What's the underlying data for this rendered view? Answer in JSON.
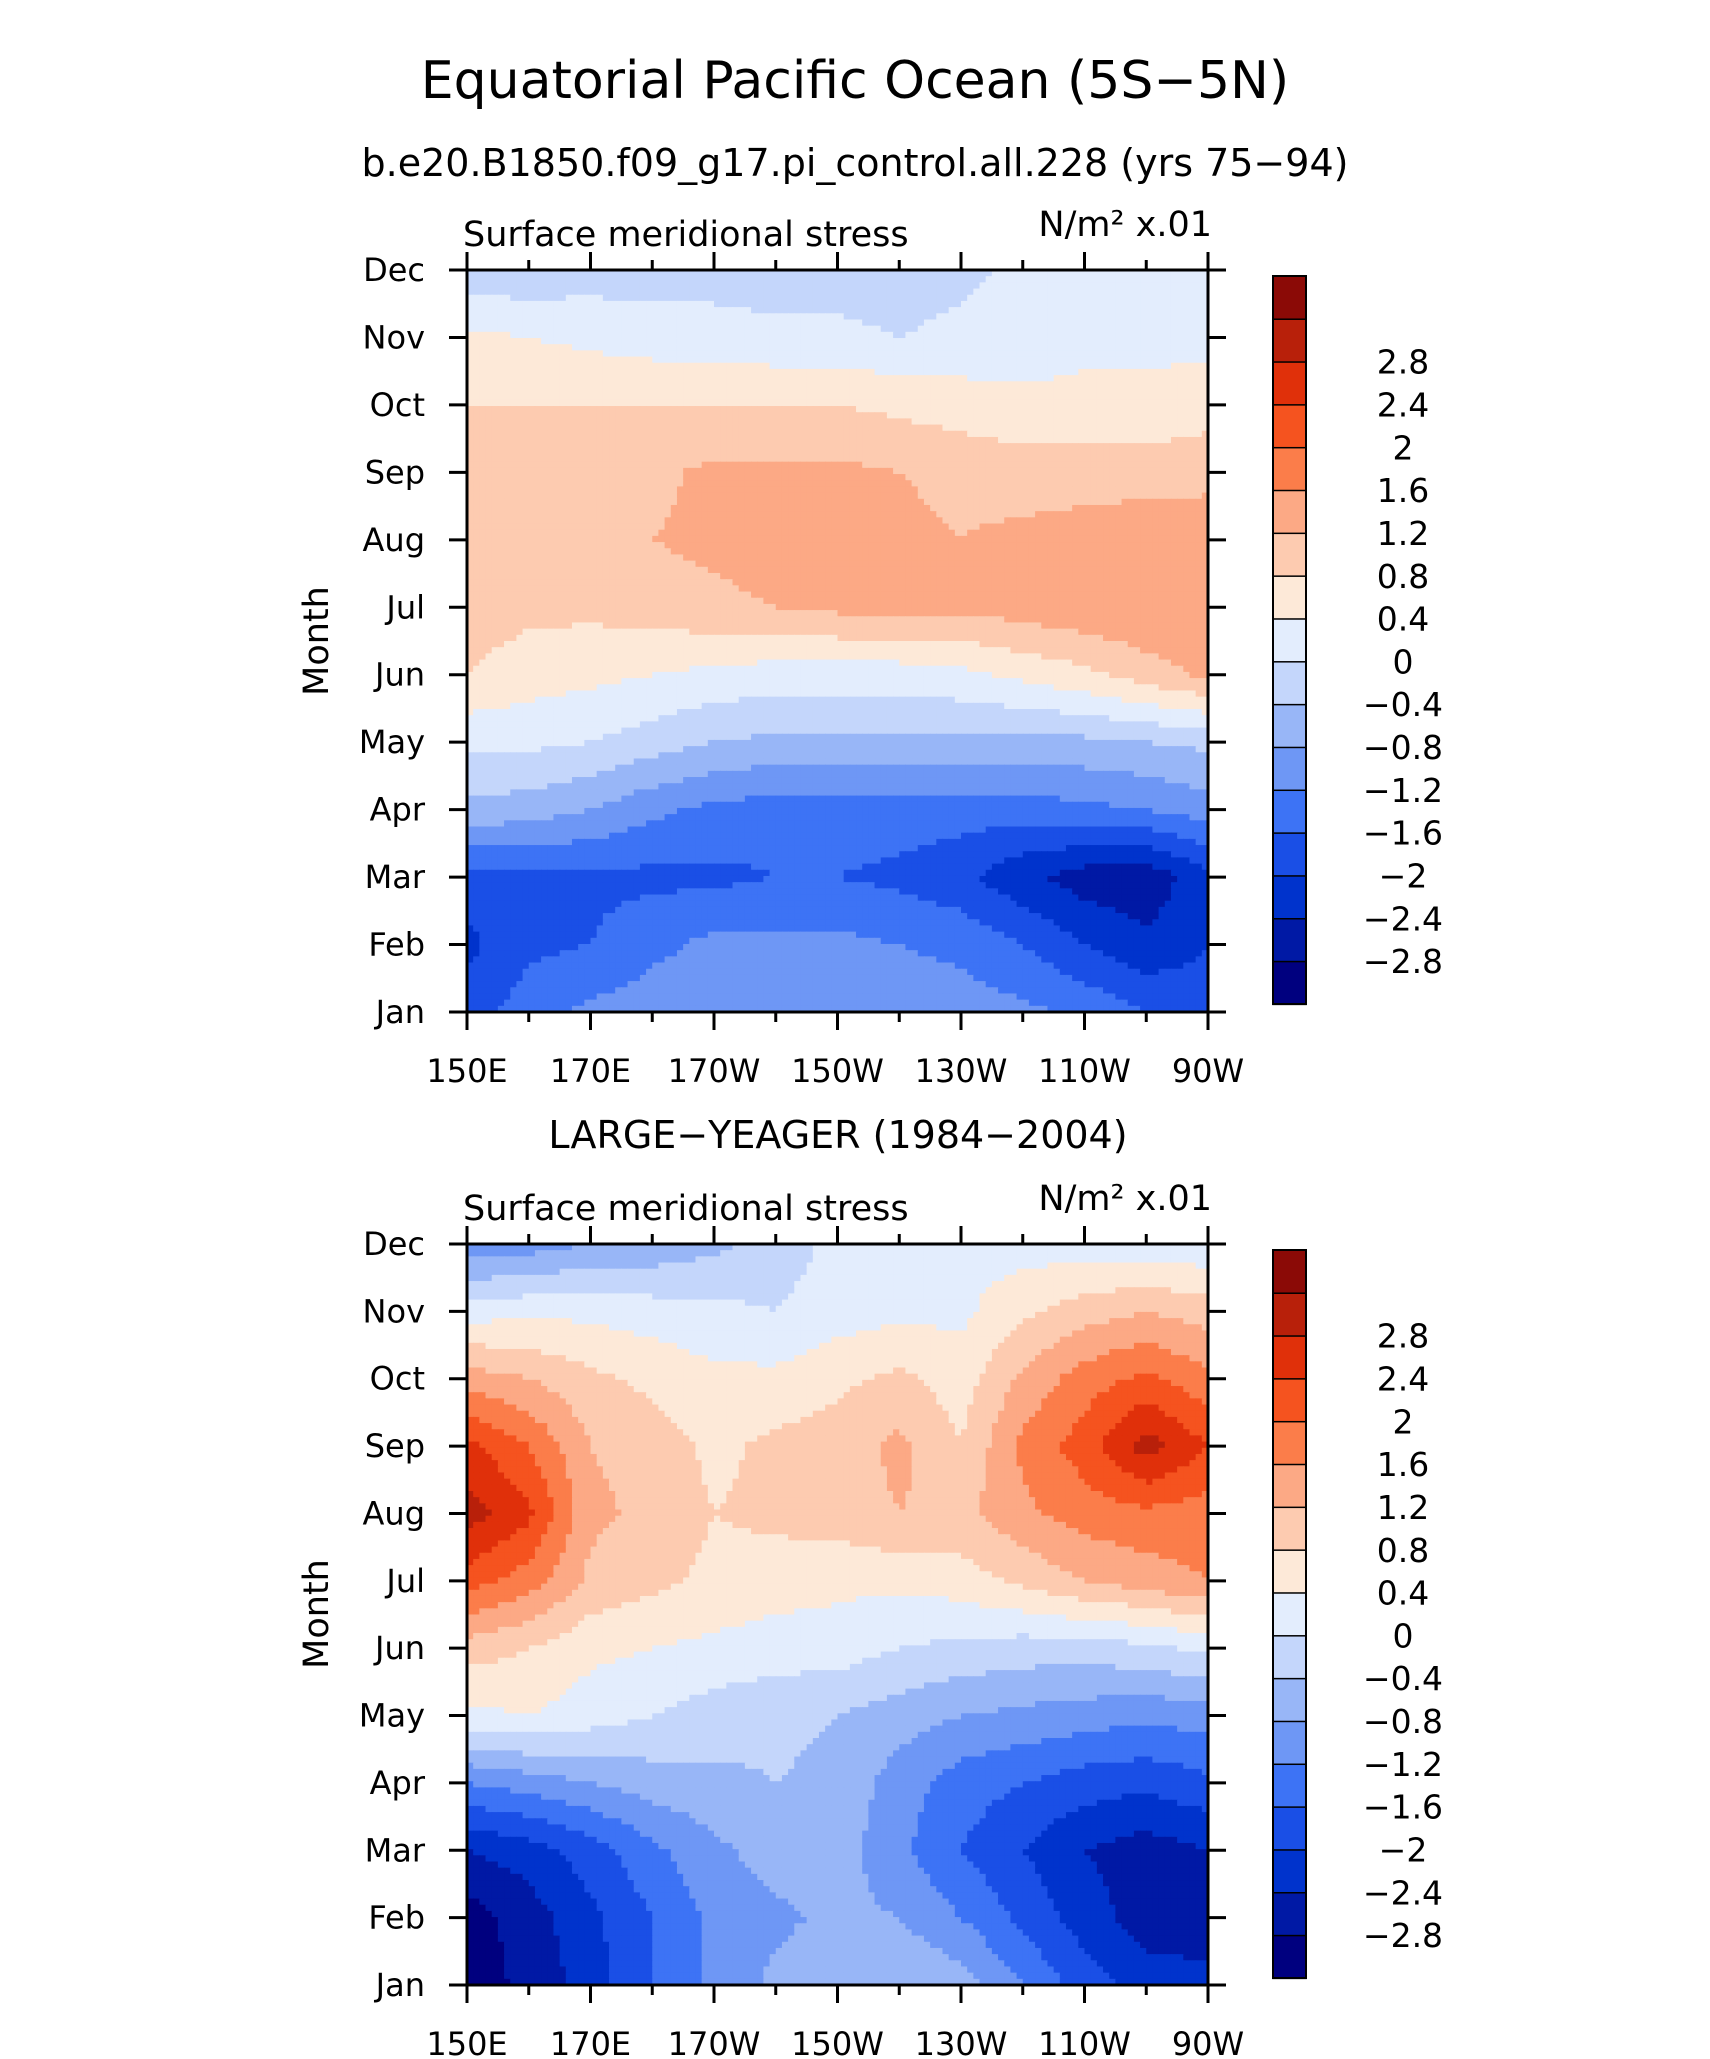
{
  "figure": {
    "title": "Equatorial Pacific Ocean (5S−5N)"
  },
  "colorbar": {
    "levels": [
      -3.2,
      -2.8,
      -2.4,
      -2.0,
      -1.6,
      -1.2,
      -0.8,
      -0.4,
      0,
      0.4,
      0.8,
      1.2,
      1.6,
      2.0,
      2.4,
      2.8,
      3.2
    ],
    "labels": [
      "−2.8",
      "−2.4",
      "−2",
      "−1.6",
      "−1.2",
      "−0.8",
      "−0.4",
      "0",
      "0.4",
      "0.8",
      "1.2",
      "1.6",
      "2",
      "2.4",
      "2.8"
    ],
    "colors": [
      "#00007f",
      "#0019a5",
      "#0033cc",
      "#1a4fe6",
      "#3d73f5",
      "#6e97f5",
      "#98b6f7",
      "#c4d6fb",
      "#e3edfd",
      "#fde9d8",
      "#fdcbb0",
      "#fca985",
      "#fb7d4a",
      "#f5531f",
      "#e0300a",
      "#b8200a",
      "#8b0a06"
    ]
  },
  "chart_data": [
    {
      "type": "heatmap",
      "title": "b.e20.B1850.f09_g17.pi_control.all.228 (yrs 75−94)",
      "left_label": "Surface meridional stress",
      "right_label": "N/m² x.01",
      "xlabel": "",
      "ylabel": "Month",
      "x_tick_labels": [
        "150E",
        "170E",
        "170W",
        "150W",
        "130W",
        "110W",
        "90W"
      ],
      "y_tick_labels": [
        "Jan",
        "Feb",
        "Mar",
        "Apr",
        "May",
        "Jun",
        "Jul",
        "Aug",
        "Sep",
        "Oct",
        "Nov",
        "Dec"
      ],
      "x_lon_east": [
        150,
        160,
        170,
        180,
        190,
        200,
        210,
        220,
        230,
        240,
        250,
        260,
        270
      ],
      "y_month": [
        "Jan",
        "Feb",
        "Mar",
        "Apr",
        "May",
        "Jun",
        "Jul",
        "Aug",
        "Sep",
        "Oct",
        "Nov",
        "Dec"
      ],
      "z": [
        [
          -1.8,
          -1.4,
          -1.1,
          -1.0,
          -1.0,
          -1.0,
          -1.0,
          -1.0,
          -1.0,
          -1.1,
          -1.3,
          -1.6,
          -1.8
        ],
        [
          -2.1,
          -1.7,
          -1.6,
          -1.3,
          -1.1,
          -1.1,
          -1.1,
          -1.2,
          -1.3,
          -1.6,
          -2.0,
          -2.3,
          -2.0
        ],
        [
          -1.8,
          -1.7,
          -1.7,
          -1.7,
          -1.7,
          -1.6,
          -1.6,
          -1.7,
          -1.9,
          -2.3,
          -2.6,
          -2.7,
          -2.1
        ],
        [
          -0.5,
          -0.6,
          -0.8,
          -1.1,
          -1.3,
          -1.4,
          -1.4,
          -1.4,
          -1.4,
          -1.4,
          -1.3,
          -1.2,
          -1.0
        ],
        [
          0.1,
          0.1,
          0.0,
          -0.2,
          -0.4,
          -0.5,
          -0.5,
          -0.5,
          -0.5,
          -0.5,
          -0.5,
          -0.4,
          -0.3
        ],
        [
          0.8,
          0.6,
          0.5,
          0.4,
          0.3,
          0.2,
          0.2,
          0.2,
          0.3,
          0.5,
          0.7,
          1.0,
          1.3
        ],
        [
          1.0,
          0.9,
          0.9,
          1.0,
          1.1,
          1.2,
          1.3,
          1.3,
          1.3,
          1.4,
          1.5,
          1.6,
          1.5
        ],
        [
          1.1,
          1.1,
          1.1,
          1.2,
          1.3,
          1.4,
          1.4,
          1.3,
          1.2,
          1.3,
          1.4,
          1.5,
          1.4
        ],
        [
          1.0,
          1.0,
          1.0,
          1.1,
          1.3,
          1.3,
          1.3,
          1.2,
          1.1,
          1.0,
          1.0,
          1.0,
          1.1
        ],
        [
          0.8,
          0.8,
          0.8,
          0.8,
          0.8,
          0.8,
          0.8,
          0.7,
          0.6,
          0.5,
          0.5,
          0.5,
          0.6
        ],
        [
          0.5,
          0.4,
          0.3,
          0.2,
          0.2,
          0.1,
          0.1,
          0.0,
          0.1,
          0.2,
          0.3,
          0.3,
          0.3
        ],
        [
          -0.3,
          -0.3,
          -0.2,
          -0.2,
          -0.2,
          -0.2,
          -0.2,
          -0.2,
          -0.1,
          0.1,
          0.2,
          0.2,
          0.2
        ]
      ]
    },
    {
      "type": "heatmap",
      "title": "LARGE−YEAGER (1984−2004)",
      "left_label": "Surface meridional stress",
      "right_label": "N/m² x.01",
      "xlabel": "",
      "ylabel": "Month",
      "x_tick_labels": [
        "150E",
        "170E",
        "170W",
        "150W",
        "130W",
        "110W",
        "90W"
      ],
      "y_tick_labels": [
        "Jan",
        "Feb",
        "Mar",
        "Apr",
        "May",
        "Jun",
        "Jul",
        "Aug",
        "Sep",
        "Oct",
        "Nov",
        "Dec"
      ],
      "x_lon_east": [
        150,
        160,
        170,
        180,
        190,
        200,
        210,
        220,
        230,
        240,
        250,
        260,
        270
      ],
      "y_month": [
        "Jan",
        "Feb",
        "Mar",
        "Apr",
        "May",
        "Jun",
        "Jul",
        "Aug",
        "Sep",
        "Oct",
        "Nov",
        "Dec"
      ],
      "z": [
        [
          -3.0,
          -2.7,
          -2.2,
          -1.6,
          -1.1,
          -0.7,
          -0.4,
          -0.4,
          -0.6,
          -1.2,
          -1.8,
          -2.2,
          -2.3
        ],
        [
          -3.0,
          -2.6,
          -2.1,
          -1.6,
          -1.1,
          -0.9,
          -0.7,
          -0.8,
          -1.2,
          -1.7,
          -2.2,
          -2.6,
          -2.6
        ],
        [
          -2.4,
          -2.2,
          -1.8,
          -1.3,
          -0.9,
          -0.6,
          -0.6,
          -1.1,
          -1.6,
          -2.0,
          -2.4,
          -2.6,
          -2.4
        ],
        [
          -1.2,
          -1.0,
          -0.8,
          -0.6,
          -0.5,
          -0.4,
          -0.5,
          -1.0,
          -1.4,
          -1.6,
          -1.8,
          -1.9,
          -1.7
        ],
        [
          0.3,
          0.4,
          0.2,
          0.0,
          -0.2,
          -0.3,
          -0.4,
          -0.6,
          -0.8,
          -0.9,
          -1.0,
          -1.1,
          -1.0
        ],
        [
          1.0,
          0.8,
          0.5,
          0.4,
          0.3,
          0.2,
          0.2,
          0.0,
          -0.1,
          -0.2,
          -0.2,
          -0.1,
          0.1
        ],
        [
          2.2,
          1.8,
          1.1,
          0.9,
          0.7,
          0.6,
          0.5,
          0.5,
          0.6,
          0.9,
          1.2,
          1.4,
          1.6
        ],
        [
          3.0,
          2.5,
          1.3,
          1.1,
          0.8,
          0.9,
          1.0,
          1.2,
          1.1,
          1.5,
          1.8,
          1.9,
          1.8
        ],
        [
          2.5,
          2.0,
          1.2,
          1.0,
          0.7,
          0.9,
          1.0,
          1.3,
          0.8,
          1.7,
          2.2,
          3.0,
          2.4
        ],
        [
          1.4,
          1.2,
          0.9,
          0.7,
          0.5,
          0.5,
          0.7,
          0.9,
          0.6,
          1.3,
          1.8,
          2.1,
          1.7
        ],
        [
          0.2,
          0.3,
          0.3,
          0.2,
          0.1,
          0.0,
          0.2,
          0.3,
          0.3,
          0.7,
          1.0,
          1.2,
          1.0
        ],
        [
          -1.1,
          -1.0,
          -0.8,
          -0.7,
          -0.5,
          -0.2,
          0.1,
          0.3,
          0.3,
          0.2,
          0.2,
          0.1,
          0.1
        ]
      ]
    }
  ]
}
